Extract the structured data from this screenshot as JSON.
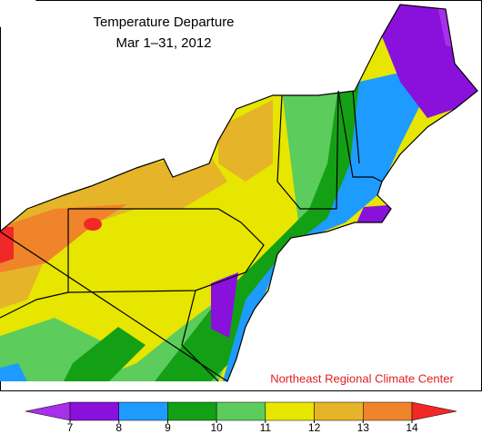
{
  "title": "Temperature Departure",
  "subtitle": "Mar 1–31, 2012",
  "credit": "Northeast Regional Climate Center",
  "legend": {
    "ticks": [
      7,
      8,
      9,
      10,
      11,
      12,
      13,
      14
    ],
    "colors": [
      "#a830e8",
      "#8a10dc",
      "#1e9bff",
      "#14a014",
      "#5ccc5c",
      "#e6e600",
      "#e6b428",
      "#f0842a",
      "#f02828"
    ]
  }
}
